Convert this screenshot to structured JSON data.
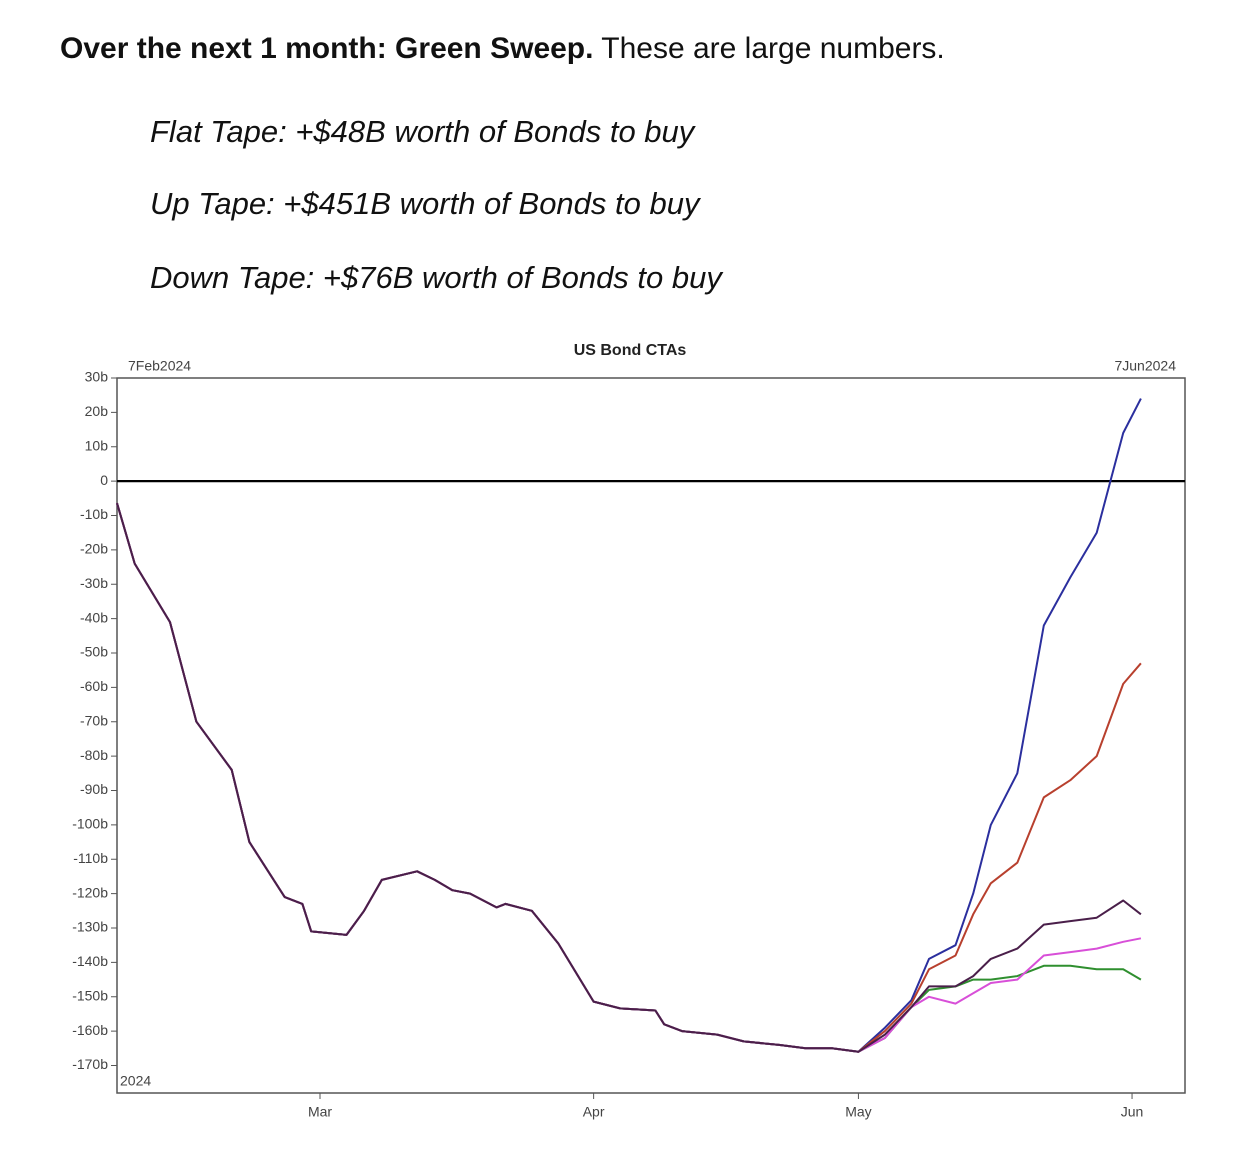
{
  "heading": {
    "bold": "Over the next 1 month: Green Sweep.",
    "rest": "These are large numbers."
  },
  "items": [
    "Flat Tape: +$48B worth of Bonds to buy",
    "Up Tape: +$451B worth of Bonds to buy",
    "Down Tape: +$76B worth of Bonds to buy"
  ],
  "chart_data": {
    "type": "line",
    "title": "US Bond CTAs",
    "start_label": "7Feb2024",
    "end_label": "7Jun2024",
    "year_label": "2024",
    "x": [
      "2024-02-07",
      "2024-02-09",
      "2024-02-13",
      "2024-02-16",
      "2024-02-20",
      "2024-02-22",
      "2024-02-26",
      "2024-02-28",
      "2024-02-29",
      "2024-03-04",
      "2024-03-06",
      "2024-03-08",
      "2024-03-12",
      "2024-03-14",
      "2024-03-16",
      "2024-03-18",
      "2024-03-21",
      "2024-03-22",
      "2024-03-25",
      "2024-03-28",
      "2024-04-01",
      "2024-04-04",
      "2024-04-08",
      "2024-04-09",
      "2024-04-11",
      "2024-04-15",
      "2024-04-18",
      "2024-04-22",
      "2024-04-25",
      "2024-04-28",
      "2024-05-01",
      "2024-05-04",
      "2024-05-07",
      "2024-05-09",
      "2024-05-12",
      "2024-05-14",
      "2024-05-16",
      "2024-05-19",
      "2024-05-22",
      "2024-05-25",
      "2024-05-28",
      "2024-05-31",
      "2024-06-02"
    ],
    "series": [
      {
        "color": "#2b2f9e",
        "values": [
          -6.4,
          -24,
          -41,
          -70,
          -84,
          -105,
          -121,
          -123,
          -131,
          -132,
          -125,
          -116,
          -113.5,
          -116,
          -119,
          -120,
          -124,
          -123,
          -125,
          -134.5,
          -151.4,
          -153.4,
          -154,
          -158,
          -160,
          -161,
          -163,
          -164,
          -165,
          -165,
          -166,
          -159,
          -151,
          -139,
          -135,
          -120,
          -100,
          -85,
          -42,
          -28,
          -15,
          14,
          24
        ]
      },
      {
        "color": "#b8402e",
        "values": [
          -6.4,
          -24,
          -41,
          -70,
          -84,
          -105,
          -121,
          -123,
          -131,
          -132,
          -125,
          -116,
          -113.5,
          -116,
          -119,
          -120,
          -124,
          -123,
          -125,
          -134.5,
          -151.4,
          -153.4,
          -154,
          -158,
          -160,
          -161,
          -163,
          -164,
          -165,
          -165,
          -166,
          -160,
          -152,
          -142,
          -138,
          -126,
          -117,
          -111,
          -92,
          -87,
          -80,
          -59,
          -53
        ]
      },
      {
        "color": "#2f8f2f",
        "values": [
          -6.4,
          -24,
          -41,
          -70,
          -84,
          -105,
          -121,
          -123,
          -131,
          -132,
          -125,
          -116,
          -113.5,
          -116,
          -119,
          -120,
          -124,
          -123,
          -125,
          -134.5,
          -151.4,
          -153.4,
          -154,
          -158,
          -160,
          -161,
          -163,
          -164,
          -165,
          -165,
          -166,
          -162,
          -153,
          -148,
          -147,
          -145,
          -145,
          -144,
          -141,
          -141,
          -142,
          -142,
          -145
        ]
      },
      {
        "color": "#d84fd8",
        "values": [
          -6.4,
          -24,
          -41,
          -70,
          -84,
          -105,
          -121,
          -123,
          -131,
          -132,
          -125,
          -116,
          -113.5,
          -116,
          -119,
          -120,
          -124,
          -123,
          -125,
          -134.5,
          -151.4,
          -153.4,
          -154,
          -158,
          -160,
          -161,
          -163,
          -164,
          -165,
          -165,
          -166,
          -162,
          -153,
          -150,
          -152,
          -149,
          -146,
          -145,
          -138,
          -137,
          -136,
          -134,
          -133
        ]
      },
      {
        "color": "#4a1f4a",
        "values": [
          -6.4,
          -24,
          -41,
          -70,
          -84,
          -105,
          -121,
          -123,
          -131,
          -132,
          -125,
          -116,
          -113.5,
          -116,
          -119,
          -120,
          -124,
          -123,
          -125,
          -134.5,
          -151.4,
          -153.4,
          -154,
          -158,
          -160,
          -161,
          -163,
          -164,
          -165,
          -165,
          -166,
          -161,
          -153,
          -147,
          -147,
          -144,
          -139,
          -136,
          -129,
          -128,
          -127,
          -122,
          -126
        ]
      }
    ],
    "xlim": [
      "2024-02-07",
      "2024-06-07"
    ],
    "xticks": [
      {
        "value": "2024-03-01",
        "label": "Mar"
      },
      {
        "value": "2024-04-01",
        "label": "Apr"
      },
      {
        "value": "2024-05-01",
        "label": "May"
      },
      {
        "value": "2024-06-01",
        "label": "Jun"
      }
    ],
    "ylim": [
      -178,
      30
    ],
    "yticks": [
      {
        "value": 30,
        "label": "30b"
      },
      {
        "value": 20,
        "label": "20b"
      },
      {
        "value": 10,
        "label": "10b"
      },
      0,
      {
        "value": -10,
        "label": "-10b"
      },
      {
        "value": -20,
        "label": "-20b"
      },
      {
        "value": -30,
        "label": "-30b"
      },
      {
        "value": -40,
        "label": "-40b"
      },
      {
        "value": -50,
        "label": "-50b"
      },
      {
        "value": -60,
        "label": "-60b"
      },
      {
        "value": -70,
        "label": "-70b"
      },
      {
        "value": -80,
        "label": "-80b"
      },
      {
        "value": -90,
        "label": "-90b"
      },
      {
        "value": -100,
        "label": "-100b"
      },
      {
        "value": -110,
        "label": "-110b"
      },
      {
        "value": -120,
        "label": "-120b"
      },
      {
        "value": -130,
        "label": "-130b"
      },
      {
        "value": -140,
        "label": "-140b"
      },
      {
        "value": -150,
        "label": "-150b"
      },
      {
        "value": -160,
        "label": "-160b"
      },
      {
        "value": -170,
        "label": "-170b"
      }
    ],
    "hline": 0,
    "grid": false
  }
}
